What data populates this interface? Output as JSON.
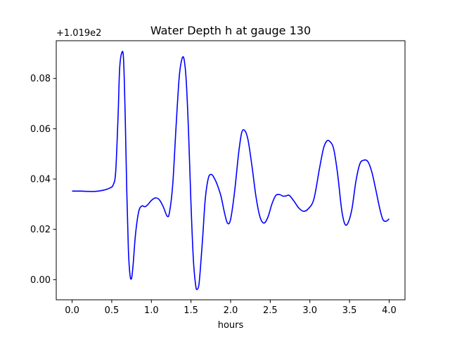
{
  "chart_data": {
    "type": "line",
    "title": "Water Depth h at gauge 130",
    "xlabel": "hours",
    "ylabel": "",
    "offset_text": "+1.019e2",
    "xlim": [
      -0.2,
      4.2
    ],
    "ylim": [
      -0.008,
      0.095
    ],
    "xticks": [
      0.0,
      0.5,
      1.0,
      1.5,
      2.0,
      2.5,
      3.0,
      3.5,
      4.0
    ],
    "xtick_labels": [
      "0.0",
      "0.5",
      "1.0",
      "1.5",
      "2.0",
      "2.5",
      "3.0",
      "3.5",
      "4.0"
    ],
    "yticks": [
      0.0,
      0.02,
      0.04,
      0.06,
      0.08
    ],
    "ytick_labels": [
      "0.00",
      "0.02",
      "0.04",
      "0.06",
      "0.08"
    ],
    "grid": false,
    "series": [
      {
        "color": "#0000ff",
        "x": [
          0.0,
          0.1,
          0.2,
          0.3,
          0.4,
          0.48,
          0.52,
          0.55,
          0.58,
          0.6,
          0.63,
          0.65,
          0.67,
          0.69,
          0.71,
          0.73,
          0.75,
          0.77,
          0.8,
          0.84,
          0.88,
          0.92,
          0.96,
          1.0,
          1.05,
          1.1,
          1.15,
          1.2,
          1.23,
          1.27,
          1.31,
          1.35,
          1.38,
          1.41,
          1.44,
          1.47,
          1.5,
          1.53,
          1.56,
          1.58,
          1.6,
          1.62,
          1.65,
          1.68,
          1.72,
          1.76,
          1.8,
          1.84,
          1.88,
          1.92,
          1.96,
          2.0,
          2.05,
          2.1,
          2.14,
          2.18,
          2.22,
          2.27,
          2.32,
          2.37,
          2.42,
          2.47,
          2.52,
          2.57,
          2.62,
          2.66,
          2.7,
          2.74,
          2.8,
          2.86,
          2.92,
          2.98,
          3.05,
          3.12,
          3.17,
          3.21,
          3.25,
          3.3,
          3.35,
          3.4,
          3.44,
          3.48,
          3.53,
          3.58,
          3.63,
          3.68,
          3.73,
          3.78,
          3.83,
          3.88,
          3.92,
          3.96,
          4.0
        ],
        "y": [
          0.0352,
          0.0352,
          0.0351,
          0.0351,
          0.0356,
          0.0365,
          0.0378,
          0.043,
          0.065,
          0.084,
          0.0905,
          0.087,
          0.065,
          0.035,
          0.012,
          0.002,
          0.0005,
          0.006,
          0.018,
          0.027,
          0.0293,
          0.029,
          0.03,
          0.0315,
          0.0325,
          0.0318,
          0.029,
          0.0252,
          0.027,
          0.038,
          0.06,
          0.08,
          0.087,
          0.088,
          0.079,
          0.058,
          0.03,
          0.008,
          -0.0025,
          -0.0038,
          -0.002,
          0.005,
          0.018,
          0.032,
          0.0405,
          0.0418,
          0.04,
          0.037,
          0.033,
          0.027,
          0.0225,
          0.024,
          0.035,
          0.05,
          0.0585,
          0.0592,
          0.0555,
          0.045,
          0.033,
          0.025,
          0.0225,
          0.0248,
          0.03,
          0.0335,
          0.0338,
          0.0332,
          0.0333,
          0.0335,
          0.0312,
          0.0285,
          0.0272,
          0.0282,
          0.032,
          0.044,
          0.052,
          0.055,
          0.055,
          0.052,
          0.042,
          0.028,
          0.0222,
          0.0225,
          0.028,
          0.039,
          0.046,
          0.0475,
          0.047,
          0.043,
          0.036,
          0.0285,
          0.024,
          0.0232,
          0.0242
        ]
      }
    ]
  }
}
